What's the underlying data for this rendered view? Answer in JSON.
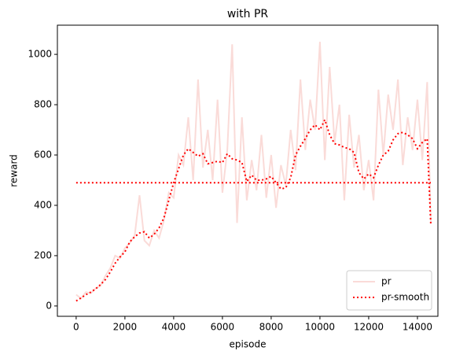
{
  "chart_data": {
    "type": "line",
    "title": "with PR",
    "xlabel": "episode",
    "ylabel": "reward",
    "x": [
      0,
      200,
      400,
      600,
      800,
      1000,
      1200,
      1400,
      1600,
      1800,
      2000,
      2200,
      2400,
      2600,
      2800,
      3000,
      3200,
      3400,
      3600,
      3800,
      4000,
      4200,
      4400,
      4600,
      4800,
      5000,
      5200,
      5400,
      5600,
      5800,
      6000,
      6200,
      6400,
      6600,
      6800,
      7000,
      7200,
      7400,
      7600,
      7800,
      8000,
      8200,
      8400,
      8600,
      8800,
      9000,
      9200,
      9400,
      9600,
      9800,
      10000,
      10200,
      10400,
      10600,
      10800,
      11000,
      11200,
      11400,
      11600,
      11800,
      12000,
      12200,
      12400,
      12600,
      12800,
      13000,
      13200,
      13400,
      13600,
      13800,
      14000,
      14200,
      14400,
      14550
    ],
    "series": [
      {
        "name": "pr",
        "color": "#fadbd8",
        "style": "solid",
        "values": [
          45,
          30,
          55,
          50,
          70,
          80,
          120,
          150,
          200,
          190,
          230,
          250,
          280,
          440,
          260,
          240,
          300,
          270,
          340,
          450,
          430,
          600,
          560,
          750,
          500,
          900,
          550,
          700,
          500,
          820,
          450,
          620,
          1040,
          330,
          750,
          420,
          580,
          460,
          680,
          430,
          600,
          390,
          560,
          480,
          700,
          540,
          900,
          620,
          820,
          700,
          1050,
          580,
          950,
          650,
          800,
          420,
          760,
          550,
          680,
          460,
          580,
          420,
          860,
          600,
          840,
          700,
          900,
          560,
          750,
          620,
          820,
          580,
          890,
          330
        ]
      },
      {
        "name": "pr-smooth",
        "color": "#ff0000",
        "style": "dotted",
        "values": [
          20,
          32,
          45,
          55,
          68,
          85,
          105,
          135,
          170,
          195,
          215,
          255,
          275,
          290,
          295,
          270,
          285,
          310,
          350,
          420,
          490,
          545,
          600,
          625,
          610,
          595,
          605,
          565,
          570,
          575,
          570,
          605,
          585,
          580,
          570,
          495,
          520,
          500,
          500,
          505,
          515,
          490,
          465,
          470,
          510,
          600,
          635,
          665,
          700,
          720,
          700,
          740,
          680,
          645,
          640,
          630,
          625,
          610,
          530,
          505,
          525,
          510,
          560,
          600,
          615,
          660,
          685,
          690,
          680,
          665,
          625,
          650,
          665,
          320
        ]
      }
    ],
    "reference_line": {
      "value": 490,
      "color": "#ff0000",
      "style": "dotted"
    },
    "xlim": [
      -770,
      14840
    ],
    "ylim": [
      -41,
      1116
    ],
    "xticks": [
      0,
      2000,
      4000,
      6000,
      8000,
      10000,
      12000,
      14000
    ],
    "yticks": [
      0,
      200,
      400,
      600,
      800,
      1000
    ],
    "grid": false,
    "legend": "lower right"
  }
}
